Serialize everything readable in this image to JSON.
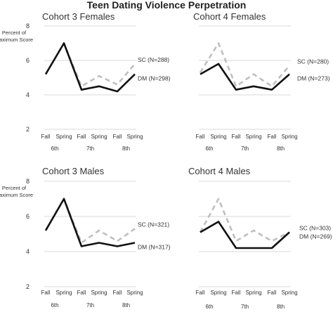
{
  "figure_title": "Teen Dating Violence Perpetration",
  "colors": {
    "dm_line": "#111111",
    "sc_line": "#bfbfbf",
    "grid": "#d9d9d9",
    "text": "#333333"
  },
  "chart_data": [
    {
      "type": "line",
      "title": "Cohort 3 Females",
      "ylabel": "Percent of Maximum Score",
      "yticks": [
        "2",
        "4",
        "6",
        "8"
      ],
      "ylim": [
        2,
        8
      ],
      "categories": [
        "Fall",
        "Spring",
        "Fall",
        "Spring",
        "Fall",
        "Spring"
      ],
      "grade_labels": [
        "6th",
        "7th",
        "8th"
      ],
      "series": [
        {
          "name": "SC (N=288)",
          "style": "dashed",
          "values": [
            5.2,
            7.0,
            4.5,
            5.1,
            4.6,
            5.8
          ]
        },
        {
          "name": "DM (N=298)",
          "style": "solid",
          "values": [
            5.2,
            7.0,
            4.3,
            4.5,
            4.2,
            5.2
          ]
        }
      ]
    },
    {
      "type": "line",
      "title": "Cohort 4 Females",
      "ylabel": "",
      "yticks": [],
      "ylim": [
        2,
        8
      ],
      "categories": [
        "Fall",
        "Spring",
        "Fall",
        "Spring",
        "Fall",
        "Spring"
      ],
      "grade_labels": [
        "6th",
        "7th",
        "8th"
      ],
      "series": [
        {
          "name": "SC (N=280)",
          "style": "dashed",
          "values": [
            5.3,
            7.0,
            4.5,
            5.2,
            4.5,
            5.7
          ]
        },
        {
          "name": "DM (N=273)",
          "style": "solid",
          "values": [
            5.2,
            5.8,
            4.3,
            4.5,
            4.3,
            5.2
          ]
        }
      ]
    },
    {
      "type": "line",
      "title": "Cohort 3 Males",
      "ylabel": "Percent of Maximum Score",
      "yticks": [
        "2",
        "4",
        "6",
        "8"
      ],
      "ylim": [
        2,
        8
      ],
      "categories": [
        "Fall",
        "Spring",
        "Fall",
        "Spring",
        "Fall",
        "Spring"
      ],
      "grade_labels": [
        "6th",
        "7th",
        "8th"
      ],
      "series": [
        {
          "name": "SC (N=321)",
          "style": "dashed",
          "values": [
            5.2,
            7.0,
            4.5,
            5.2,
            4.6,
            5.3
          ]
        },
        {
          "name": "DM (N=317)",
          "style": "solid",
          "values": [
            5.2,
            7.0,
            4.3,
            4.5,
            4.3,
            4.5
          ]
        }
      ]
    },
    {
      "type": "line",
      "title": "Cohort 4 Males",
      "ylabel": "",
      "yticks": [],
      "ylim": [
        2,
        8
      ],
      "categories": [
        "Fall",
        "Spring",
        "Fall",
        "Spring",
        "Fall",
        "Spring"
      ],
      "grade_labels": [
        "6th",
        "7th",
        "8th"
      ],
      "series": [
        {
          "name": "SC (N=303)",
          "style": "dashed",
          "values": [
            5.1,
            7.0,
            4.6,
            5.2,
            4.6,
            5.1
          ]
        },
        {
          "name": "DM (N=269)",
          "style": "solid",
          "values": [
            5.1,
            5.7,
            4.2,
            4.2,
            4.2,
            5.1
          ]
        }
      ]
    }
  ]
}
